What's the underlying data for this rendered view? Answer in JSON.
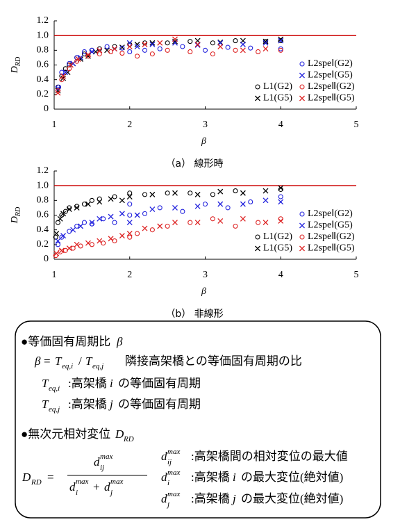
{
  "chart_data": [
    {
      "type": "scatter",
      "caption": "（a） 線形時",
      "xlabel": "β",
      "ylabel": "D",
      "ylabel_sub": "RD",
      "xlim": [
        1,
        5
      ],
      "ylim": [
        0,
        1.2
      ],
      "xticks": [
        1,
        2,
        3,
        4,
        5
      ],
      "yticks": [
        0,
        0.2,
        0.4,
        0.6,
        0.8,
        {
          "value": 1,
          "label": "1.0"
        },
        1.2
      ],
      "reference_line": {
        "y": 1,
        "color": "#cc0000"
      },
      "series": [
        {
          "name": "L1(G2)",
          "color": "#000000",
          "marker": "o",
          "x": [
            1.05,
            1.1,
            1.15,
            1.2,
            1.3,
            1.4,
            1.5,
            1.6,
            1.8,
            2.0,
            2.2,
            2.5,
            2.8,
            3.1,
            3.4,
            3.8,
            4.0
          ],
          "values": [
            0.3,
            0.45,
            0.55,
            0.6,
            0.7,
            0.75,
            0.8,
            0.82,
            0.85,
            0.88,
            0.9,
            0.9,
            0.92,
            0.9,
            0.93,
            0.92,
            0.93
          ]
        },
        {
          "name": "L1(G5)",
          "color": "#000000",
          "marker": "x",
          "x": [
            1.05,
            1.12,
            1.18,
            1.25,
            1.35,
            1.45,
            1.55,
            1.7,
            1.9,
            2.1,
            2.3,
            2.6,
            2.9,
            3.2,
            3.5,
            3.8,
            4.0
          ],
          "values": [
            0.25,
            0.42,
            0.5,
            0.62,
            0.68,
            0.72,
            0.78,
            0.8,
            0.84,
            0.88,
            0.9,
            0.92,
            0.93,
            0.91,
            0.93,
            0.92,
            0.95
          ]
        },
        {
          "name": "L2speⅠ(G2)",
          "color": "#2222dd",
          "marker": "o",
          "x": [
            1.06,
            1.1,
            1.2,
            1.3,
            1.4,
            1.5,
            1.7,
            1.9,
            2.0,
            2.2,
            2.4,
            2.7,
            3.0,
            3.3,
            3.6,
            4.0
          ],
          "values": [
            0.3,
            0.5,
            0.62,
            0.7,
            0.78,
            0.8,
            0.85,
            0.83,
            0.78,
            0.8,
            0.82,
            0.85,
            0.8,
            0.84,
            0.83,
            0.82
          ]
        },
        {
          "name": "L2speⅠ(G5)",
          "color": "#2222dd",
          "marker": "x",
          "x": [
            1.05,
            1.15,
            1.25,
            1.35,
            1.5,
            1.6,
            1.8,
            2.0,
            2.1,
            2.3,
            2.6,
            2.9,
            3.2,
            3.5,
            3.8,
            4.0
          ],
          "values": [
            0.28,
            0.5,
            0.62,
            0.7,
            0.78,
            0.8,
            0.82,
            0.9,
            0.85,
            0.88,
            0.9,
            0.87,
            0.9,
            0.88,
            0.9,
            0.93
          ]
        },
        {
          "name": "L2speⅡ(G2)",
          "color": "#dd2222",
          "marker": "o",
          "x": [
            1.05,
            1.1,
            1.2,
            1.3,
            1.45,
            1.6,
            1.75,
            1.9,
            2.1,
            2.3,
            2.5,
            2.8,
            3.1,
            3.4,
            3.7,
            4.0
          ],
          "values": [
            0.25,
            0.4,
            0.55,
            0.65,
            0.72,
            0.75,
            0.78,
            0.76,
            0.72,
            0.75,
            0.8,
            0.78,
            0.75,
            0.8,
            0.78,
            0.8
          ]
        },
        {
          "name": "L2speⅡ(G5)",
          "color": "#dd2222",
          "marker": "x",
          "x": [
            1.05,
            1.12,
            1.22,
            1.32,
            1.45,
            1.6,
            1.8,
            2.0,
            2.2,
            2.4,
            2.6,
            2.9,
            3.2,
            3.5,
            3.8
          ],
          "values": [
            0.22,
            0.45,
            0.6,
            0.68,
            0.74,
            0.8,
            0.82,
            0.85,
            0.88,
            0.9,
            0.95,
            0.88,
            0.85,
            0.8,
            0.82
          ]
        }
      ]
    },
    {
      "type": "scatter",
      "caption": "（b） 非線形",
      "xlabel": "β",
      "ylabel": "D",
      "ylabel_sub": "RD",
      "xlim": [
        1,
        5
      ],
      "ylim": [
        0,
        1.2
      ],
      "xticks": [
        1,
        2,
        3,
        4,
        5
      ],
      "yticks": [
        0,
        0.2,
        0.4,
        0.6,
        0.8,
        {
          "value": 1,
          "label": "1.0"
        },
        1.2
      ],
      "reference_line": {
        "y": 1,
        "color": "#cc0000"
      },
      "series": [
        {
          "name": "L1(G2)",
          "color": "#000000",
          "marker": "o",
          "x": [
            1.02,
            1.05,
            1.1,
            1.15,
            1.2,
            1.3,
            1.4,
            1.5,
            1.6,
            1.8,
            2.0,
            2.2,
            2.5,
            2.8,
            3.1,
            3.4,
            4.0
          ],
          "values": [
            0.3,
            0.5,
            0.6,
            0.65,
            0.7,
            0.72,
            0.75,
            0.8,
            0.82,
            0.85,
            0.9,
            0.88,
            0.9,
            0.9,
            0.88,
            0.93,
            0.95
          ]
        },
        {
          "name": "L1(G5)",
          "color": "#000000",
          "marker": "x",
          "x": [
            1.03,
            1.08,
            1.12,
            1.2,
            1.3,
            1.45,
            1.6,
            1.75,
            1.9,
            2.0,
            2.3,
            2.6,
            2.9,
            3.2,
            3.5,
            3.8,
            4.0
          ],
          "values": [
            0.35,
            0.55,
            0.62,
            0.68,
            0.7,
            0.75,
            0.78,
            0.82,
            0.8,
            0.85,
            0.88,
            0.9,
            0.88,
            0.92,
            0.9,
            0.93,
            0.97
          ]
        },
        {
          "name": "L2speⅠ(G2)",
          "color": "#2222dd",
          "marker": "o",
          "x": [
            1.05,
            1.1,
            1.2,
            1.3,
            1.4,
            1.5,
            1.65,
            1.8,
            2.0,
            2.0,
            2.2,
            2.4,
            2.7,
            3.0,
            3.3,
            3.6,
            4.0
          ],
          "values": [
            0.2,
            0.3,
            0.38,
            0.45,
            0.5,
            0.48,
            0.55,
            0.5,
            0.6,
            0.75,
            0.62,
            0.7,
            0.65,
            0.75,
            0.7,
            0.78,
            0.85
          ]
        },
        {
          "name": "L2speⅠ(G5)",
          "color": "#2222dd",
          "marker": "x",
          "x": [
            1.05,
            1.12,
            1.25,
            1.35,
            1.5,
            1.6,
            1.75,
            1.9,
            2.0,
            2.1,
            2.3,
            2.6,
            2.9,
            3.2,
            3.5,
            3.8,
            4.0
          ],
          "values": [
            0.25,
            0.32,
            0.4,
            0.45,
            0.5,
            0.55,
            0.58,
            0.62,
            0.5,
            0.6,
            0.68,
            0.7,
            0.72,
            0.75,
            0.75,
            0.8,
            0.78
          ]
        },
        {
          "name": "L2speⅡ(G2)",
          "color": "#dd2222",
          "marker": "o",
          "x": [
            1.02,
            1.08,
            1.15,
            1.25,
            1.35,
            1.5,
            1.65,
            1.8,
            2.0,
            2.1,
            2.3,
            2.5,
            2.8,
            3.1,
            3.4,
            3.7,
            4.0
          ],
          "values": [
            0.05,
            0.1,
            0.12,
            0.15,
            0.18,
            0.2,
            0.22,
            0.25,
            0.3,
            0.35,
            0.4,
            0.45,
            0.5,
            0.55,
            0.45,
            0.5,
            0.55
          ]
        },
        {
          "name": "L2speⅡ(G5)",
          "color": "#dd2222",
          "marker": "x",
          "x": [
            1.03,
            1.1,
            1.2,
            1.3,
            1.45,
            1.6,
            1.75,
            1.9,
            2.0,
            2.2,
            2.4,
            2.6,
            2.9,
            3.2,
            3.5,
            3.8,
            4.0
          ],
          "values": [
            0.08,
            0.12,
            0.15,
            0.2,
            0.22,
            0.25,
            0.28,
            0.32,
            0.35,
            0.42,
            0.45,
            0.5,
            0.5,
            0.52,
            0.55,
            0.5,
            0.52
          ]
        }
      ]
    }
  ],
  "definitions": {
    "beta_heading": [
      "●等価固有周期比",
      "β"
    ],
    "beta_formula": [
      "β",
      "=",
      "T",
      "eq,i",
      "/",
      "T",
      "eq,j",
      "隣接高架橋との等価固有周期の比"
    ],
    "teqi": [
      "T",
      "eq,i",
      ":高架橋",
      "i",
      "の等価固有周期"
    ],
    "teqj": [
      "T",
      "eq,j",
      ":高架橋",
      "j",
      "の等価固有周期"
    ],
    "drd_heading": [
      "●無次元相対変位",
      "D",
      "RD"
    ],
    "drd_lhs": [
      "D",
      "RD",
      "="
    ],
    "numerator": [
      "d",
      "ij",
      "max"
    ],
    "denominator": [
      "d",
      "i",
      "max",
      "+",
      "d",
      "j",
      "max"
    ],
    "dij": [
      "d",
      "ij",
      "max",
      ":高架橋間の相対変位の最大値"
    ],
    "di": [
      "d",
      "i",
      "max",
      ":高架橋",
      "i",
      "の最大変位(絶対値)"
    ],
    "dj": [
      "d",
      "j",
      "max",
      ":高架橋",
      "j",
      "の最大変位(絶対値)"
    ]
  }
}
